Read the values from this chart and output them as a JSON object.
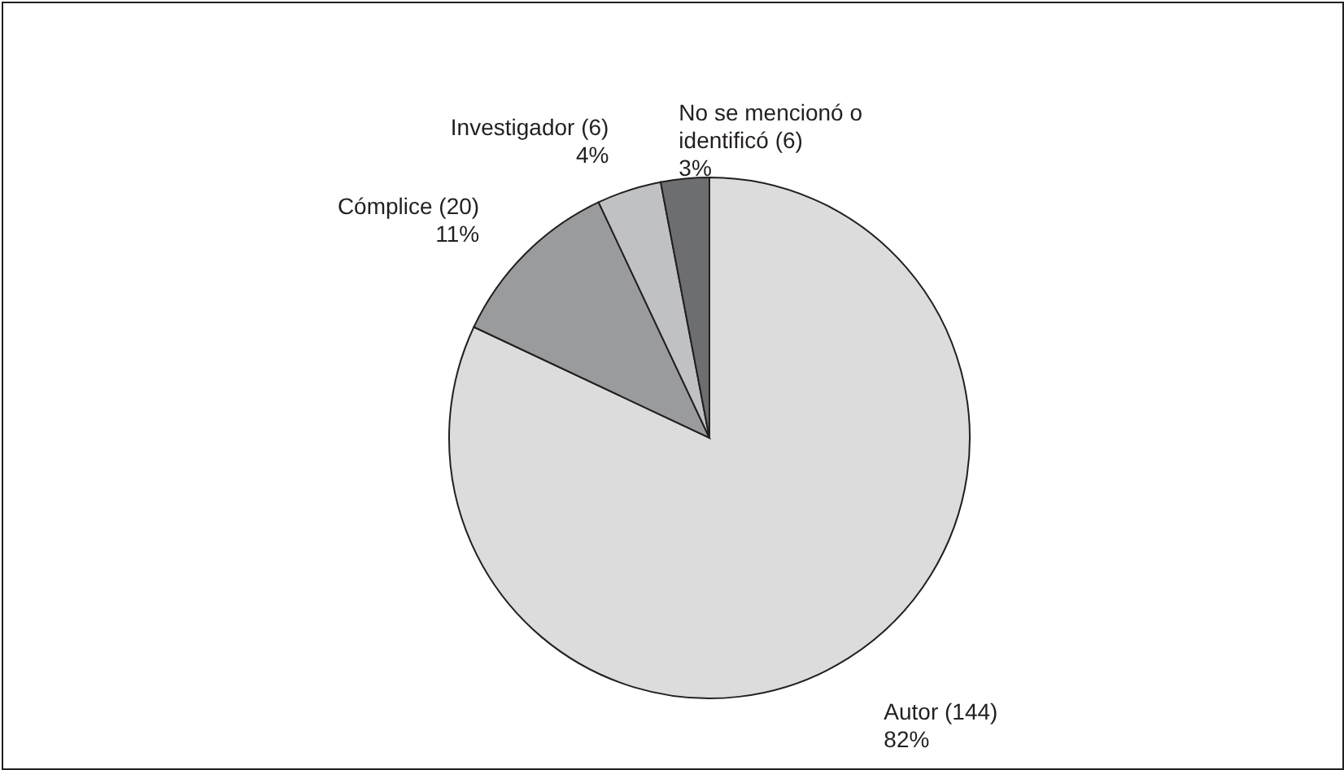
{
  "chart_data": {
    "type": "pie",
    "categories": [
      "Autor (144)",
      "Cómplice (20)",
      "Investigador (6)",
      "No se mencionó o identificó (6)"
    ],
    "values": [
      82,
      11,
      4,
      3
    ],
    "value_labels": [
      "82%",
      "11%",
      "4%",
      "3%"
    ],
    "colors": [
      "#dcdcdd",
      "#9a9b9d",
      "#c0c1c3",
      "#6d6e70"
    ]
  }
}
